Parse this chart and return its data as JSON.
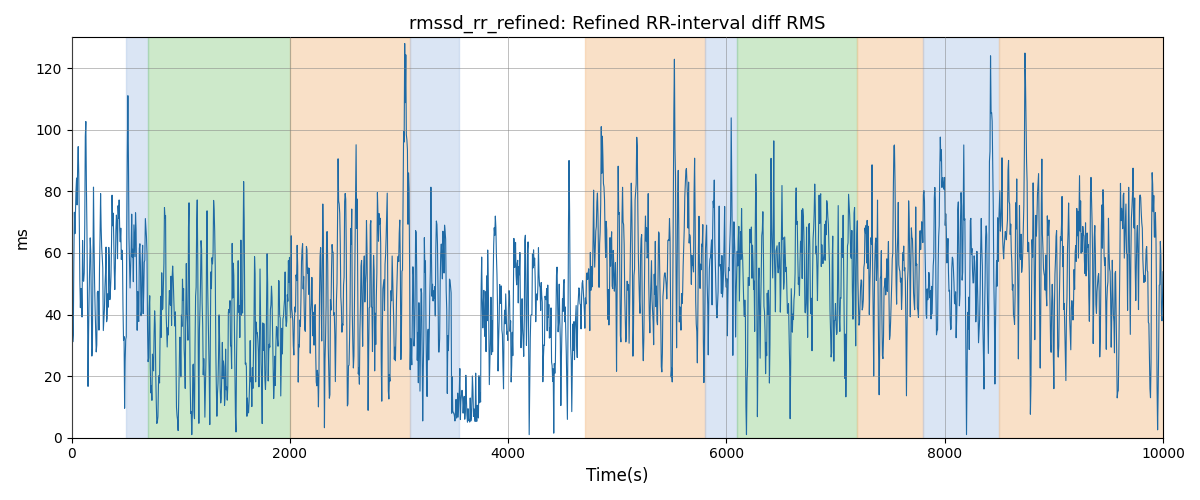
{
  "title": "rmssd_rr_refined: Refined RR-interval diff RMS",
  "xlabel": "Time(s)",
  "ylabel": "ms",
  "xlim": [
    0,
    10000
  ],
  "ylim": [
    0,
    130
  ],
  "yticks": [
    0,
    20,
    40,
    60,
    80,
    100,
    120
  ],
  "line_color": "#1f6aa5",
  "line_width": 0.8,
  "regions": [
    {
      "start": 500,
      "end": 700,
      "color": "#aec6e8",
      "alpha": 0.45
    },
    {
      "start": 700,
      "end": 2000,
      "color": "#90d08b",
      "alpha": 0.45
    },
    {
      "start": 2000,
      "end": 3100,
      "color": "#f5c89a",
      "alpha": 0.55
    },
    {
      "start": 3100,
      "end": 3550,
      "color": "#aec6e8",
      "alpha": 0.45
    },
    {
      "start": 3550,
      "end": 4700,
      "color": "#ffffff",
      "alpha": 0.0
    },
    {
      "start": 4700,
      "end": 5800,
      "color": "#f5c89a",
      "alpha": 0.55
    },
    {
      "start": 5800,
      "end": 6100,
      "color": "#aec6e8",
      "alpha": 0.45
    },
    {
      "start": 6100,
      "end": 7200,
      "color": "#90d08b",
      "alpha": 0.45
    },
    {
      "start": 7200,
      "end": 7800,
      "color": "#f5c89a",
      "alpha": 0.55
    },
    {
      "start": 7800,
      "end": 8500,
      "color": "#aec6e8",
      "alpha": 0.45
    },
    {
      "start": 8500,
      "end": 10200,
      "color": "#f5c89a",
      "alpha": 0.55
    }
  ],
  "figsize": [
    12,
    5
  ],
  "dpi": 100,
  "seed": 17
}
